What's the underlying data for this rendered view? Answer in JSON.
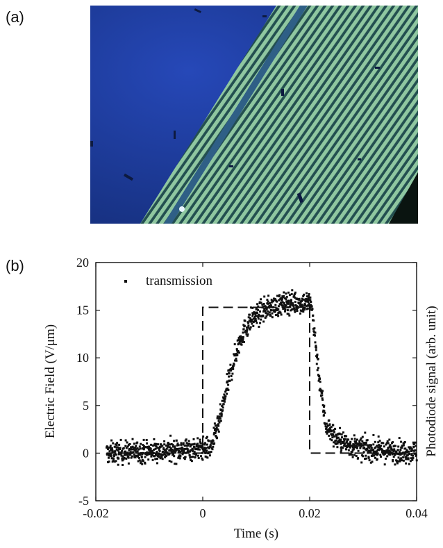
{
  "figure": {
    "panel_a_label": "(a)",
    "panel_b_label": "(b)"
  },
  "micrograph": {
    "colors": {
      "substrate": "#1f3fa8",
      "stripe": "#8fc7a0",
      "gap": "#2f5f7a"
    }
  },
  "chart_data": {
    "type": "scatter",
    "title": "",
    "xlabel": "Time (s)",
    "ylabel": "Electric Field (V/μm)",
    "ylabel_right": "Photodiode signal (arb. unit)",
    "xlim": [
      -0.02,
      0.04
    ],
    "ylim": [
      -5,
      20
    ],
    "xticks": [
      "-0.02",
      "0",
      "0.02",
      "0.04"
    ],
    "yticks": [
      "-5",
      "0",
      "5",
      "10",
      "15",
      "20"
    ],
    "xtick_values": [
      -0.02,
      0,
      0.02,
      0.04
    ],
    "ytick_values": [
      -5,
      0,
      5,
      10,
      15,
      20
    ],
    "legend_position": "top-left",
    "series": [
      {
        "name": "transmission",
        "style": "dots",
        "profile_x": [
          -0.018,
          0.0015,
          0.003,
          0.005,
          0.007,
          0.009,
          0.012,
          0.016,
          0.02,
          0.0205,
          0.021,
          0.022,
          0.023,
          0.025,
          0.028,
          0.032,
          0.036,
          0.04
        ],
        "profile_y": [
          0,
          0.5,
          3,
          8,
          12,
          14,
          15.2,
          15.8,
          15.8,
          15,
          12,
          7,
          3,
          1.5,
          0.7,
          0.3,
          0.2,
          0.2
        ],
        "spread": 1.1,
        "point_count": 1400
      },
      {
        "name": "",
        "style": "dashed",
        "x": [
          -0.018,
          0,
          0,
          0.02,
          0.02,
          0.04
        ],
        "y": [
          0,
          0,
          15.3,
          15.3,
          0,
          0
        ]
      }
    ]
  }
}
